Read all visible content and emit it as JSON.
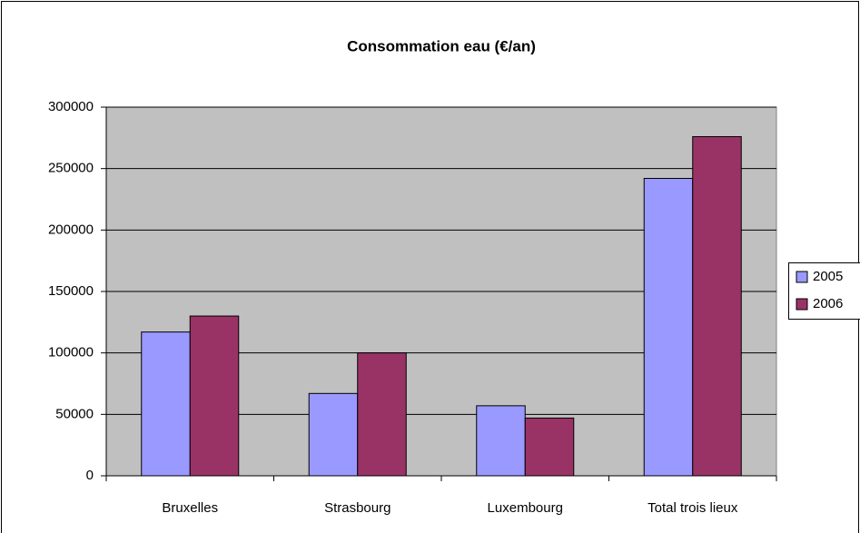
{
  "chart_data": {
    "type": "bar",
    "title": "Consommation eau (€/an)",
    "categories": [
      "Bruxelles",
      "Strasbourg",
      "Luxembourg",
      "Total trois lieux"
    ],
    "series": [
      {
        "name": "2005",
        "color": "#9999ff",
        "values": [
          117000,
          67000,
          57000,
          242000
        ]
      },
      {
        "name": "2006",
        "color": "#993366",
        "values": [
          130000,
          100000,
          47000,
          276000
        ]
      }
    ],
    "ylim": [
      0,
      300000
    ],
    "yticks": [
      0,
      50000,
      100000,
      150000,
      200000,
      250000,
      300000
    ],
    "grid": true,
    "legend": "right"
  }
}
